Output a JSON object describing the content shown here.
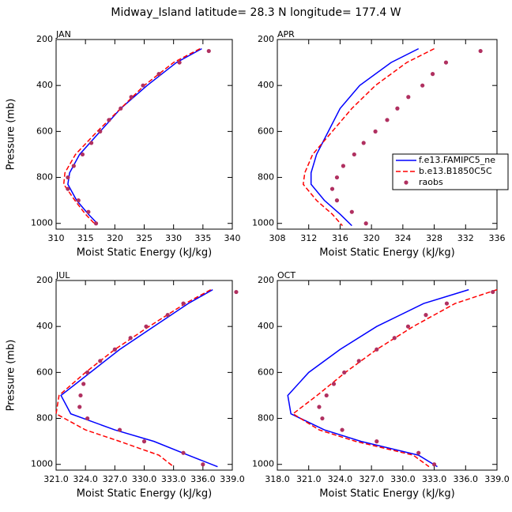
{
  "title": "Midway_Island  latitude= 28.3 N longitude= 177.4 W",
  "chart_data": [
    {
      "type": "line",
      "title": "JAN",
      "xlabel": "Moist Static Energy (kJ/kg)",
      "ylabel": "Pressure (mb)",
      "xlim": [
        310,
        340
      ],
      "xticks": [
        310,
        315,
        320,
        325,
        330,
        335,
        340
      ],
      "ylim": [
        1025,
        200
      ],
      "yticks": [
        200,
        400,
        600,
        800,
        1000
      ],
      "series": [
        {
          "color": "#0000ff",
          "dash": "solid",
          "x": [
            334.8,
            330.5,
            325.5,
            321,
            317.5,
            314,
            312.3,
            312,
            313.5,
            315.5,
            317
          ],
          "y": [
            240,
            300,
            400,
            500,
            600,
            700,
            780,
            830,
            900,
            960,
            1000
          ]
        },
        {
          "color": "#ff0000",
          "dash": "dashed",
          "x": [
            334.5,
            330,
            325,
            321,
            317,
            313.3,
            311.5,
            311.3,
            313.2,
            315,
            316.5
          ],
          "y": [
            240,
            300,
            400,
            500,
            600,
            700,
            780,
            830,
            900,
            960,
            1000
          ]
        },
        {
          "color": "#b03060",
          "marker": "circle",
          "x": [
            336,
            331,
            327.5,
            324.8,
            322.8,
            321,
            319,
            317.5,
            316,
            314.5,
            313,
            312,
            312,
            313.8,
            315.5,
            316.8
          ],
          "y": [
            250,
            300,
            350,
            400,
            450,
            500,
            550,
            600,
            650,
            700,
            750,
            800,
            850,
            900,
            950,
            1000
          ]
        }
      ]
    },
    {
      "type": "line",
      "title": "APR",
      "xlabel": "Moist Static Energy (kJ/kg)",
      "legend": "right",
      "xlim": [
        308,
        336
      ],
      "xticks": [
        308,
        312,
        316,
        320,
        324,
        328,
        332,
        336
      ],
      "ylim": [
        1025,
        200
      ],
      "yticks": [
        200,
        400,
        600,
        800,
        1000
      ],
      "series": [
        {
          "name": "f.e13.FAMIPC5_ne",
          "color": "#0000ff",
          "dash": "solid",
          "x": [
            326,
            322.5,
            318.5,
            316,
            314.5,
            313,
            312.3,
            312.3,
            314,
            316,
            317.5
          ],
          "y": [
            240,
            300,
            400,
            500,
            600,
            700,
            780,
            830,
            900,
            960,
            1010
          ]
        },
        {
          "name": "b.e13.B1850C5C",
          "color": "#ff0000",
          "dash": "dashed",
          "x": [
            328,
            324.5,
            320.5,
            317.5,
            315,
            312.5,
            311.5,
            311.3,
            313,
            315,
            316.3
          ],
          "y": [
            240,
            300,
            400,
            500,
            600,
            700,
            780,
            830,
            900,
            960,
            1010
          ]
        },
        {
          "name": "raobs",
          "color": "#b03060",
          "marker": "circle",
          "x": [
            333.9,
            329.5,
            327.8,
            326.5,
            324.7,
            323.3,
            322,
            320.5,
            319,
            317.8,
            316.4,
            315.6,
            315,
            315.6,
            317.5,
            319.3
          ],
          "y": [
            250,
            300,
            350,
            400,
            450,
            500,
            550,
            600,
            650,
            700,
            750,
            800,
            850,
            900,
            950,
            1000
          ]
        }
      ]
    },
    {
      "type": "line",
      "title": "JUL",
      "xlabel": "Moist Static Energy (kJ/kg)",
      "ylabel": "Pressure (mb)",
      "xlim": [
        321,
        339
      ],
      "xticks": [
        {
          "value": 321,
          "label": "321.0"
        },
        {
          "value": 324,
          "label": "324.0"
        },
        {
          "value": 327,
          "label": "327.0"
        },
        {
          "value": 330,
          "label": "330.0"
        },
        {
          "value": 333,
          "label": "333.0"
        },
        {
          "value": 336,
          "label": "336.0"
        },
        {
          "value": 339,
          "label": "339.0"
        }
      ],
      "ylim": [
        1025,
        200
      ],
      "yticks": [
        200,
        400,
        600,
        800,
        1000
      ],
      "series": [
        {
          "color": "#0000ff",
          "dash": "solid",
          "x": [
            337,
            334.5,
            331,
            327.5,
            324.5,
            321.5,
            322.5,
            327,
            331,
            334.5,
            337.5
          ],
          "y": [
            240,
            300,
            400,
            500,
            600,
            700,
            780,
            850,
            900,
            960,
            1010
          ]
        },
        {
          "color": "#ff0000",
          "dash": "dashed",
          "x": [
            336.8,
            334.2,
            330.5,
            327,
            324,
            321.3,
            321,
            324,
            327.5,
            331.5,
            333
          ],
          "y": [
            240,
            300,
            400,
            500,
            600,
            700,
            780,
            850,
            900,
            960,
            1010
          ]
        },
        {
          "color": "#b03060",
          "marker": "circle",
          "x": [
            339.4,
            334,
            332.4,
            330.2,
            328.6,
            327,
            325.5,
            324.2,
            323.8,
            323.5,
            323.4,
            324.2,
            327.5,
            330,
            334,
            336
          ],
          "y": [
            250,
            300,
            350,
            400,
            450,
            500,
            550,
            600,
            650,
            700,
            750,
            800,
            850,
            900,
            950,
            1000
          ]
        }
      ]
    },
    {
      "type": "line",
      "title": "OCT",
      "xlabel": "Moist Static Energy (kJ/kg)",
      "xlim": [
        318,
        339
      ],
      "xticks": [
        {
          "value": 318,
          "label": "318.0"
        },
        {
          "value": 321,
          "label": "321.0"
        },
        {
          "value": 324,
          "label": "324.0"
        },
        {
          "value": 327,
          "label": "327.0"
        },
        {
          "value": 330,
          "label": "330.0"
        },
        {
          "value": 333,
          "label": "333.0"
        },
        {
          "value": 336,
          "label": "336.0"
        },
        {
          "value": 339,
          "label": "339.0"
        }
      ],
      "ylim": [
        1025,
        200
      ],
      "yticks": [
        200,
        400,
        600,
        800,
        1000
      ],
      "series": [
        {
          "color": "#0000ff",
          "dash": "solid",
          "x": [
            336.3,
            332,
            327.5,
            324,
            321,
            319,
            319.3,
            322.5,
            326,
            331.5,
            333.3
          ],
          "y": [
            240,
            300,
            400,
            500,
            600,
            700,
            780,
            850,
            900,
            960,
            1010
          ]
        },
        {
          "color": "#ff0000",
          "dash": "dashed",
          "x": [
            339,
            335,
            331,
            327.5,
            324.5,
            321.8,
            319.5,
            322,
            325.5,
            331,
            332.5
          ],
          "y": [
            240,
            300,
            400,
            500,
            600,
            700,
            780,
            850,
            900,
            960,
            1010
          ]
        },
        {
          "color": "#b03060",
          "marker": "circle",
          "x": [
            338.6,
            334.2,
            332.2,
            330.5,
            329.2,
            327.5,
            325.8,
            324.4,
            323.4,
            322.7,
            322,
            322.3,
            324.2,
            327.5,
            331.5,
            333
          ],
          "y": [
            250,
            300,
            350,
            400,
            450,
            500,
            550,
            600,
            650,
            700,
            750,
            800,
            850,
            900,
            950,
            1000
          ]
        }
      ]
    }
  ]
}
